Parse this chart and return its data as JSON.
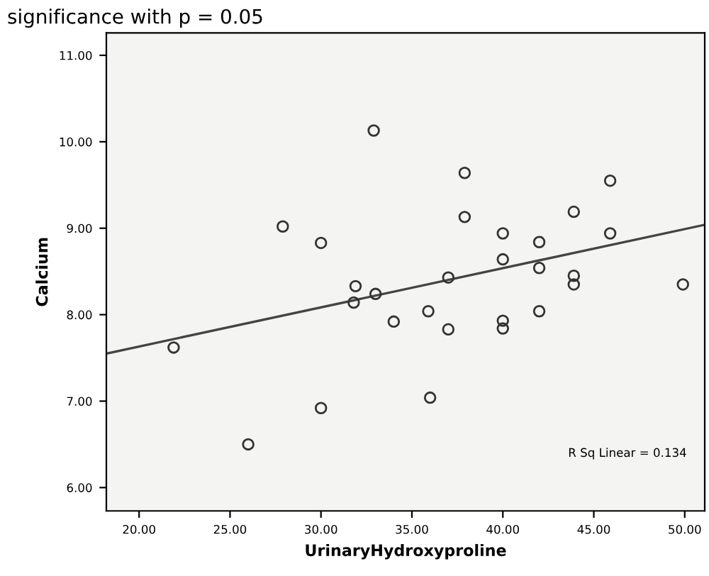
{
  "chart_data": {
    "type": "scatter",
    "xlabel": "UrinaryHydroxyproline",
    "ylabel": "Calcium",
    "annotations": [
      "significance with p = 0.05",
      "R Sq Linear = 0.134"
    ],
    "xlim": [
      18.2,
      51.1
    ],
    "ylim": [
      5.73,
      11.26
    ],
    "xticks": [
      {
        "value": 20,
        "label": "20.00"
      },
      {
        "value": 25,
        "label": "25.00"
      },
      {
        "value": 30,
        "label": "30.00"
      },
      {
        "value": 35,
        "label": "35.00"
      },
      {
        "value": 40,
        "label": "40.00"
      },
      {
        "value": 45,
        "label": "45.00"
      },
      {
        "value": 50,
        "label": "50.00"
      }
    ],
    "yticks": [
      {
        "value": 6,
        "label": "6.00"
      },
      {
        "value": 7,
        "label": "7.00"
      },
      {
        "value": 8,
        "label": "8.00"
      },
      {
        "value": 9,
        "label": "9.00"
      },
      {
        "value": 10,
        "label": "10.00"
      },
      {
        "value": 11,
        "label": "11.00"
      }
    ],
    "grid": false,
    "series": [
      {
        "marker": "circle",
        "color": "#333333",
        "x": [
          21.9,
          27.9,
          30.0,
          30.0,
          26.0,
          31.9,
          31.8,
          32.9,
          33.0,
          34.0,
          35.9,
          36.0,
          37.0,
          37.0,
          37.9,
          37.9,
          40.0,
          40.0,
          40.0,
          40.0,
          42.0,
          42.0,
          42.0,
          43.9,
          43.9,
          43.9,
          45.9,
          45.9,
          49.9
        ],
        "values": [
          7.62,
          9.02,
          8.83,
          6.92,
          6.5,
          8.33,
          8.14,
          10.13,
          8.24,
          7.92,
          8.04,
          7.04,
          8.43,
          7.83,
          9.64,
          9.13,
          8.94,
          8.64,
          7.93,
          7.84,
          8.84,
          8.54,
          8.04,
          9.19,
          8.45,
          8.35,
          9.55,
          8.94,
          8.35
        ]
      },
      {
        "type": "line",
        "color": "#444444",
        "x": [
          18.2,
          51.1
        ],
        "values": [
          7.55,
          9.04
        ]
      }
    ]
  }
}
